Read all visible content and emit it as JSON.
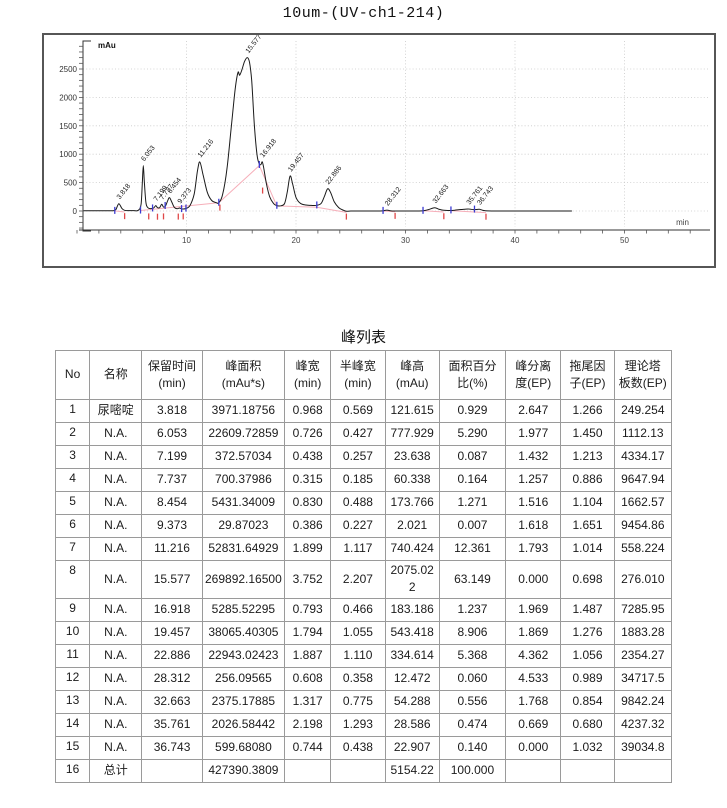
{
  "title": "10um-(UV-ch1-214)",
  "chart_data": {
    "type": "line",
    "title": "10um-(UV-ch1-214)",
    "xlabel": "min",
    "ylabel": "mAu",
    "xlim": [
      0,
      55
    ],
    "ylim": [
      -300,
      3000
    ],
    "x_ticks": [
      10,
      20,
      30,
      40,
      50
    ],
    "y_ticks": [
      0,
      500,
      1000,
      1500,
      2000,
      2500
    ],
    "grid": true,
    "trace_color": "#1a1a1a",
    "baseline_color": "#f6aeb9",
    "start_marker_color": "#3a3ad0",
    "end_marker_color": "#e04848",
    "peaks": [
      {
        "label": "3.818",
        "rt": 3.818,
        "height": 121.615,
        "area": 3971.18756,
        "apex_drawn": 128
      },
      {
        "label": "6.053",
        "rt": 6.053,
        "height": 777.929,
        "area": 22609.72859,
        "apex_drawn": 800
      },
      {
        "label": "7.199",
        "rt": 7.199,
        "height": 23.638,
        "area": 372.57034,
        "apex_drawn": 95
      },
      {
        "label": "7.737",
        "rt": 7.737,
        "height": 60.338,
        "area": 700.37986,
        "apex_drawn": 120
      },
      {
        "label": "8.454",
        "rt": 8.454,
        "height": 173.766,
        "area": 5431.34009,
        "apex_drawn": 235
      },
      {
        "label": "9.373",
        "rt": 9.373,
        "height": 2.021,
        "area": 29.87023,
        "apex_drawn": 52
      },
      {
        "label": "11.216",
        "rt": 11.216,
        "height": 740.424,
        "area": 52831.64929,
        "apex_drawn": 865
      },
      {
        "label": "15.577",
        "rt": 15.577,
        "height": 2075.022,
        "area": 269892.165,
        "apex_drawn": 2700
      },
      {
        "label": "16.918",
        "rt": 16.918,
        "height": 183.186,
        "area": 5285.52295,
        "apex_drawn": 865
      },
      {
        "label": "19.457",
        "rt": 19.457,
        "height": 543.418,
        "area": 38065.40305,
        "apex_drawn": 615
      },
      {
        "label": "22.886",
        "rt": 22.886,
        "height": 334.614,
        "area": 22943.02423,
        "apex_drawn": 390
      },
      {
        "label": "28.312",
        "rt": 28.312,
        "height": 12.472,
        "area": 256.09565,
        "apex_drawn": 16
      },
      {
        "label": "32.663",
        "rt": 32.663,
        "height": 54.288,
        "area": 2375.17885,
        "apex_drawn": 58
      },
      {
        "label": "35.761",
        "rt": 35.761,
        "height": 28.586,
        "area": 2026.58442,
        "apex_drawn": 36
      },
      {
        "label": "36.743",
        "rt": 36.743,
        "height": 22.907,
        "area": 599.6808,
        "apex_drawn": 30
      }
    ],
    "trace": [
      [
        0.6,
        5
      ],
      [
        1.5,
        5
      ],
      [
        2.8,
        5
      ],
      [
        3.3,
        6
      ],
      [
        3.55,
        25
      ],
      [
        3.818,
        128
      ],
      [
        4.1,
        45
      ],
      [
        4.35,
        12
      ],
      [
        4.7,
        7
      ],
      [
        5.2,
        7
      ],
      [
        5.6,
        12
      ],
      [
        5.85,
        120
      ],
      [
        5.97,
        520
      ],
      [
        6.053,
        800
      ],
      [
        6.15,
        520
      ],
      [
        6.3,
        140
      ],
      [
        6.5,
        55
      ],
      [
        6.75,
        42
      ],
      [
        7.0,
        52
      ],
      [
        7.199,
        95
      ],
      [
        7.35,
        58
      ],
      [
        7.55,
        60
      ],
      [
        7.737,
        120
      ],
      [
        7.9,
        70
      ],
      [
        8.1,
        95
      ],
      [
        8.3,
        190
      ],
      [
        8.454,
        235
      ],
      [
        8.65,
        160
      ],
      [
        8.9,
        60
      ],
      [
        9.15,
        40
      ],
      [
        9.373,
        52
      ],
      [
        9.6,
        35
      ],
      [
        9.9,
        42
      ],
      [
        10.3,
        90
      ],
      [
        10.7,
        300
      ],
      [
        11.0,
        700
      ],
      [
        11.216,
        865
      ],
      [
        11.5,
        650
      ],
      [
        11.9,
        330
      ],
      [
        12.3,
        185
      ],
      [
        12.7,
        148
      ],
      [
        12.95,
        145
      ],
      [
        13.3,
        290
      ],
      [
        13.7,
        750
      ],
      [
        14.1,
        1500
      ],
      [
        14.45,
        2150
      ],
      [
        14.7,
        2440
      ],
      [
        14.85,
        2390
      ],
      [
        15.05,
        2480
      ],
      [
        15.3,
        2630
      ],
      [
        15.55,
        2700
      ],
      [
        15.75,
        2620
      ],
      [
        15.95,
        2300
      ],
      [
        16.2,
        1500
      ],
      [
        16.45,
        980
      ],
      [
        16.65,
        830
      ],
      [
        16.8,
        820
      ],
      [
        16.918,
        865
      ],
      [
        17.05,
        760
      ],
      [
        17.3,
        480
      ],
      [
        17.6,
        250
      ],
      [
        17.95,
        130
      ],
      [
        18.25,
        95
      ],
      [
        18.6,
        92
      ],
      [
        18.95,
        130
      ],
      [
        19.2,
        330
      ],
      [
        19.457,
        615
      ],
      [
        19.7,
        470
      ],
      [
        20.0,
        240
      ],
      [
        20.4,
        135
      ],
      [
        20.9,
        105
      ],
      [
        21.4,
        98
      ],
      [
        21.9,
        100
      ],
      [
        22.3,
        135
      ],
      [
        22.6,
        260
      ],
      [
        22.886,
        390
      ],
      [
        23.15,
        330
      ],
      [
        23.5,
        160
      ],
      [
        23.9,
        60
      ],
      [
        24.3,
        15
      ],
      [
        24.6,
        -5
      ],
      [
        25.0,
        0
      ],
      [
        26.0,
        0
      ],
      [
        27.0,
        0
      ],
      [
        27.7,
        0
      ],
      [
        28.0,
        5
      ],
      [
        28.312,
        16
      ],
      [
        28.6,
        5
      ],
      [
        29.0,
        0
      ],
      [
        29.8,
        0
      ],
      [
        30.8,
        0
      ],
      [
        31.6,
        3
      ],
      [
        32.1,
        25
      ],
      [
        32.663,
        58
      ],
      [
        33.1,
        28
      ],
      [
        33.5,
        12
      ],
      [
        34.0,
        8
      ],
      [
        34.5,
        14
      ],
      [
        35.1,
        26
      ],
      [
        35.761,
        36
      ],
      [
        36.2,
        24
      ],
      [
        36.743,
        30
      ],
      [
        37.1,
        10
      ],
      [
        37.5,
        2
      ],
      [
        38.5,
        0
      ],
      [
        40,
        0
      ],
      [
        42,
        0
      ],
      [
        44,
        0
      ],
      [
        45.2,
        0
      ]
    ],
    "baseline_segments": [
      [
        [
          3.45,
          2
        ],
        [
          4.35,
          -18
        ]
      ],
      [
        [
          5.8,
          8
        ],
        [
          12.95,
          145
        ]
      ],
      [
        [
          12.95,
          145
        ],
        [
          16.65,
          800
        ]
      ],
      [
        [
          16.65,
          800
        ],
        [
          18.25,
          90
        ]
      ],
      [
        [
          18.25,
          90
        ],
        [
          21.9,
          65
        ],
        [
          24.6,
          -25
        ]
      ],
      [
        [
          27.95,
          0
        ],
        [
          29.05,
          -12
        ]
      ],
      [
        [
          31.6,
          3
        ],
        [
          33.5,
          -18
        ]
      ],
      [
        [
          34.2,
          3
        ],
        [
          37.35,
          -28
        ]
      ]
    ],
    "start_markers": [
      [
        3.45,
        2
      ],
      [
        5.8,
        8
      ],
      [
        6.9,
        45
      ],
      [
        8.05,
        88
      ],
      [
        9.55,
        34
      ],
      [
        9.95,
        42
      ],
      [
        12.95,
        145
      ],
      [
        16.65,
        810
      ],
      [
        18.25,
        92
      ],
      [
        21.9,
        98
      ],
      [
        27.95,
        2
      ],
      [
        31.6,
        3
      ],
      [
        34.15,
        10
      ],
      [
        36.3,
        25
      ]
    ],
    "end_markers": [
      [
        4.35,
        -20
      ],
      [
        6.55,
        -25
      ],
      [
        7.35,
        -30
      ],
      [
        7.9,
        -25
      ],
      [
        9.25,
        -28
      ],
      [
        9.7,
        -25
      ],
      [
        13.05,
        130
      ],
      [
        16.95,
        430
      ],
      [
        24.6,
        -28
      ],
      [
        29.05,
        -15
      ],
      [
        33.5,
        -22
      ],
      [
        37.35,
        -30
      ]
    ]
  },
  "table": {
    "title": "峰列表",
    "columns": [
      "No",
      "名称",
      "保留时间\n(min)",
      "峰面积\n(mAu*s)",
      "峰宽\n(min)",
      "半峰宽\n(min)",
      "峰高\n(mAu)",
      "面积百分\n比(%)",
      "峰分离\n度(EP)",
      "拖尾因\n子(EP)",
      "理论塔\n板数(EP)"
    ],
    "rows": [
      [
        "1",
        "尿嘧啶",
        "3.818",
        "3971.18756",
        "0.968",
        "0.569",
        "121.615",
        "0.929",
        "2.647",
        "1.266",
        "249.254"
      ],
      [
        "2",
        "N.A.",
        "6.053",
        "22609.72859",
        "0.726",
        "0.427",
        "777.929",
        "5.290",
        "1.977",
        "1.450",
        "1112.13"
      ],
      [
        "3",
        "N.A.",
        "7.199",
        "372.57034",
        "0.438",
        "0.257",
        "23.638",
        "0.087",
        "1.432",
        "1.213",
        "4334.17"
      ],
      [
        "4",
        "N.A.",
        "7.737",
        "700.37986",
        "0.315",
        "0.185",
        "60.338",
        "0.164",
        "1.257",
        "0.886",
        "9647.94"
      ],
      [
        "5",
        "N.A.",
        "8.454",
        "5431.34009",
        "0.830",
        "0.488",
        "173.766",
        "1.271",
        "1.516",
        "1.104",
        "1662.57"
      ],
      [
        "6",
        "N.A.",
        "9.373",
        "29.87023",
        "0.386",
        "0.227",
        "2.021",
        "0.007",
        "1.618",
        "1.651",
        "9454.86"
      ],
      [
        "7",
        "N.A.",
        "11.216",
        "52831.64929",
        "1.899",
        "1.117",
        "740.424",
        "12.361",
        "1.793",
        "1.014",
        "558.224"
      ],
      [
        "8",
        "N.A.",
        "15.577",
        "269892.16500",
        "3.752",
        "2.207",
        "2075.022",
        "63.149",
        "0.000",
        "0.698",
        "276.010"
      ],
      [
        "9",
        "N.A.",
        "16.918",
        "5285.52295",
        "0.793",
        "0.466",
        "183.186",
        "1.237",
        "1.969",
        "1.487",
        "7285.95"
      ],
      [
        "10",
        "N.A.",
        "19.457",
        "38065.40305",
        "1.794",
        "1.055",
        "543.418",
        "8.906",
        "1.869",
        "1.276",
        "1883.28"
      ],
      [
        "11",
        "N.A.",
        "22.886",
        "22943.02423",
        "1.887",
        "1.110",
        "334.614",
        "5.368",
        "4.362",
        "1.056",
        "2354.27"
      ],
      [
        "12",
        "N.A.",
        "28.312",
        "256.09565",
        "0.608",
        "0.358",
        "12.472",
        "0.060",
        "4.533",
        "0.989",
        "34717.5"
      ],
      [
        "13",
        "N.A.",
        "32.663",
        "2375.17885",
        "1.317",
        "0.775",
        "54.288",
        "0.556",
        "1.768",
        "0.854",
        "9842.24"
      ],
      [
        "14",
        "N.A.",
        "35.761",
        "2026.58442",
        "2.198",
        "1.293",
        "28.586",
        "0.474",
        "0.669",
        "0.680",
        "4237.32"
      ],
      [
        "15",
        "N.A.",
        "36.743",
        "599.68080",
        "0.744",
        "0.438",
        "22.907",
        "0.140",
        "0.000",
        "1.032",
        "39034.8"
      ],
      [
        "16",
        "总计",
        "",
        "427390.3809",
        "",
        "",
        "5154.22",
        "100.000",
        "",
        "",
        ""
      ]
    ]
  }
}
